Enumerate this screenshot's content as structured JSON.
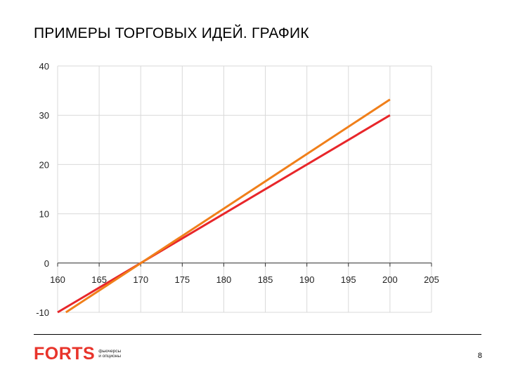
{
  "slide": {
    "title": "ПРИМЕРЫ ТОРГОВЫХ ИДЕЙ. ГРАФИК",
    "page_number": "8"
  },
  "logo": {
    "word": "FORTS",
    "tagline_1": "фьючерсы",
    "tagline_2": "и опционы"
  },
  "chart_data": {
    "type": "line",
    "title": "",
    "xlabel": "",
    "ylabel": "",
    "xlim": [
      160,
      205
    ],
    "ylim": [
      -10,
      40
    ],
    "x_ticks": [
      "160",
      "165",
      "170",
      "175",
      "180",
      "185",
      "190",
      "195",
      "200",
      "205"
    ],
    "y_ticks": [
      "40",
      "30",
      "20",
      "10",
      "0",
      "-10"
    ],
    "grid": true,
    "legend": "none",
    "series": [
      {
        "color": "#e8262a",
        "points": [
          [
            160,
            -10
          ],
          [
            200,
            30
          ]
        ]
      },
      {
        "color": "#f07f1a",
        "points": [
          [
            161,
            -10
          ],
          [
            200,
            33.2
          ]
        ]
      }
    ]
  }
}
